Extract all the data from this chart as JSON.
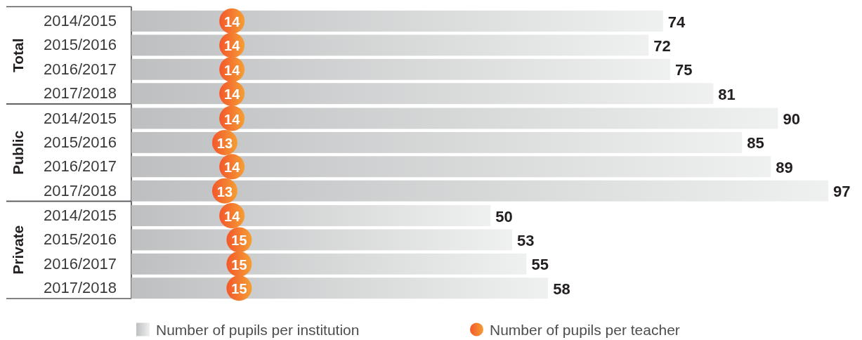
{
  "chart_data": [
    {
      "type": "bar",
      "orientation": "horizontal",
      "ylabel": "Total",
      "categories": [
        "2014/2015",
        "2015/2016",
        "2016/2017",
        "2017/2018"
      ],
      "tick_labels": "y",
      "data_labels": true,
      "marker": "circle",
      "series": [
        {
          "color": "#d6d7d8",
          "values": [
            74,
            72,
            75,
            81
          ]
        },
        {
          "type": "scatter",
          "color": "#f47c30",
          "values": [
            14,
            14,
            14,
            14
          ]
        }
      ]
    },
    {
      "type": "bar",
      "orientation": "horizontal",
      "ylabel": "Public",
      "categories": [
        "2014/2015",
        "2015/2016",
        "2016/2017",
        "2017/2018"
      ],
      "tick_labels": "y",
      "data_labels": true,
      "marker": "circle",
      "series": [
        {
          "color": "#d6d7d8",
          "values": [
            90,
            85,
            89,
            97
          ]
        },
        {
          "type": "scatter",
          "color": "#f47c30",
          "values": [
            14,
            13,
            14,
            13
          ]
        }
      ]
    },
    {
      "type": "bar",
      "orientation": "horizontal",
      "ylabel": "Private",
      "categories": [
        "2014/2015",
        "2015/2016",
        "2016/2017",
        "2017/2018"
      ],
      "tick_labels": "y",
      "data_labels": true,
      "marker": "circle",
      "legend": "bottom",
      "series": [
        {
          "name": "Number of pupils per institution",
          "color": "#d6d7d8",
          "values": [
            50,
            53,
            55,
            58
          ]
        },
        {
          "type": "scatter",
          "name": "Number of pupils per teacher",
          "color": "#f47c30",
          "values": [
            14,
            15,
            15,
            15
          ]
        }
      ]
    }
  ]
}
